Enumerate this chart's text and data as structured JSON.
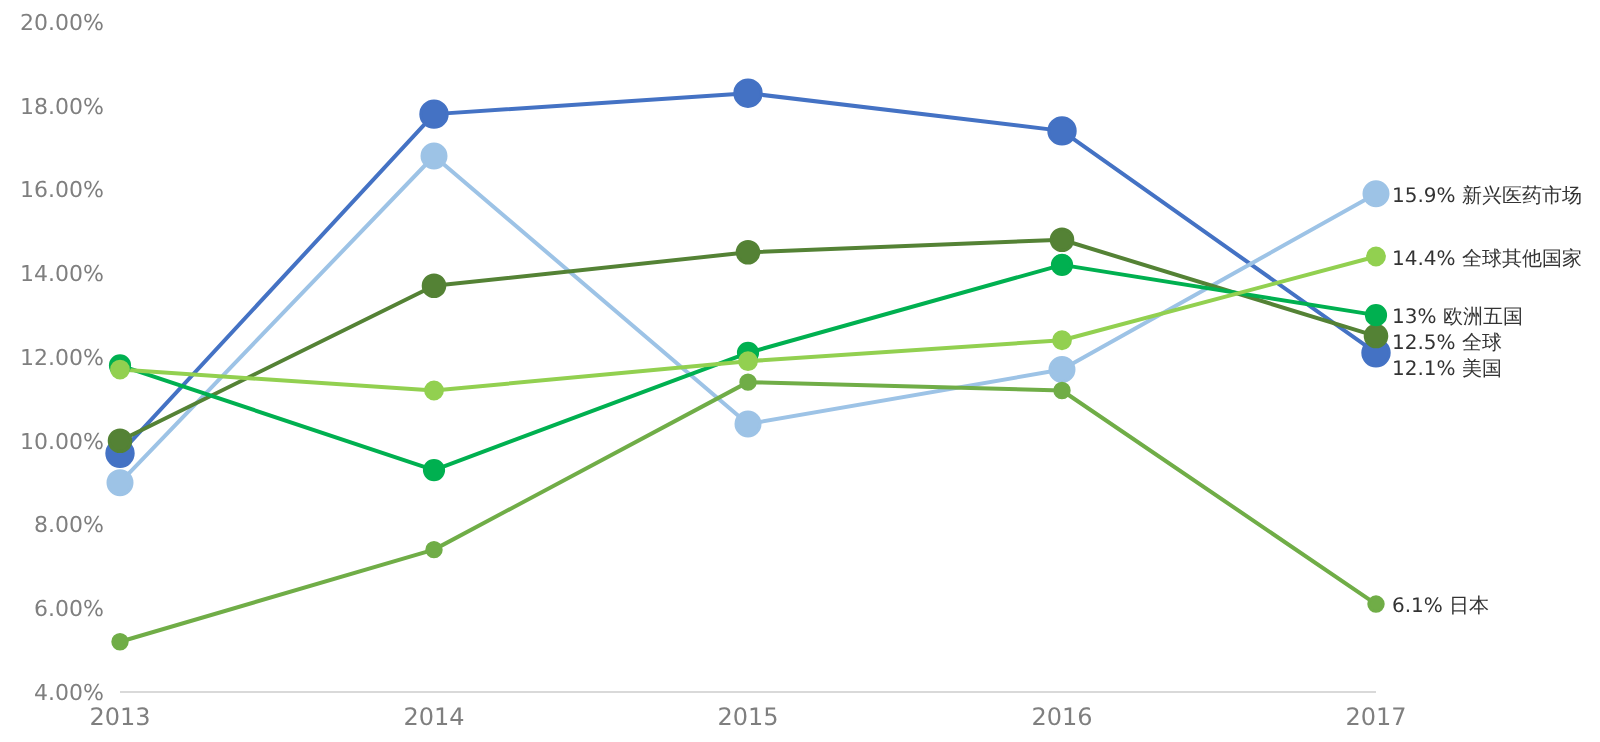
{
  "chart_data": {
    "type": "line",
    "categories": [
      "2013",
      "2014",
      "2015",
      "2016",
      "2017"
    ],
    "series": [
      {
        "name": "美国",
        "color": "#4472c4",
        "values": [
          9.7,
          17.8,
          18.3,
          17.4,
          12.1
        ],
        "value_labels": [
          null,
          null,
          null,
          null,
          "12.1%"
        ]
      },
      {
        "name": "新兴医药市场",
        "color": "#9dc3e6",
        "values": [
          9.0,
          16.8,
          10.4,
          11.7,
          15.9
        ],
        "value_labels": [
          null,
          null,
          null,
          null,
          "15.9%"
        ]
      },
      {
        "name": "全球",
        "color": "#548235",
        "values": [
          10.0,
          13.7,
          14.5,
          14.8,
          12.5
        ],
        "value_labels": [
          null,
          null,
          null,
          null,
          "12.5%"
        ]
      },
      {
        "name": "欧洲五国",
        "color": "#00b050",
        "values": [
          11.8,
          9.3,
          12.1,
          14.2,
          13
        ],
        "value_labels": [
          null,
          null,
          null,
          null,
          "13%"
        ]
      },
      {
        "name": "全球其他国家",
        "color": "#92d050",
        "values": [
          11.7,
          11.2,
          11.9,
          12.4,
          14.4
        ],
        "value_labels": [
          null,
          null,
          null,
          null,
          "14.4%"
        ]
      },
      {
        "name": "日本",
        "color": "#70ad47",
        "values": [
          5.2,
          7.4,
          11.4,
          11.2,
          6.1
        ],
        "value_labels": [
          null,
          null,
          null,
          null,
          "6.1%"
        ]
      }
    ],
    "ylim": [
      4,
      20
    ],
    "yticks": [
      {
        "value": 4,
        "label": "4.00%"
      },
      {
        "value": 6,
        "label": "6.00%"
      },
      {
        "value": 8,
        "label": "8.00%"
      },
      {
        "value": 10,
        "label": "10.00%"
      },
      {
        "value": 12,
        "label": "12.00%"
      },
      {
        "value": 14,
        "label": "14.00%"
      },
      {
        "value": 16,
        "label": "16.00%"
      },
      {
        "value": 18,
        "label": "18.00%"
      },
      {
        "value": 20,
        "label": "20.00%"
      }
    ],
    "grid": false,
    "legend": false,
    "marker": "circle",
    "line_style": "solid"
  }
}
